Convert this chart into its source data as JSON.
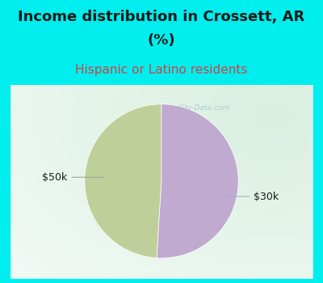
{
  "title_line1": "Income distribution in Crossett, AR",
  "title_line2": "(%)",
  "subtitle": "Hispanic or Latino residents",
  "title_color": "#1a1a1a",
  "subtitle_color": "#cc4444",
  "background_color": "#00EEEE",
  "chart_bg_left": "#c8e8d8",
  "chart_bg_right": "#e8f4f0",
  "slices": [
    49,
    51
  ],
  "labels": [
    "$50k",
    "$30k"
  ],
  "slice_colors": [
    "#bfcf99",
    "#c0aad0"
  ],
  "title_fontsize": 13,
  "subtitle_fontsize": 11,
  "label_fontsize": 9,
  "label_color": "#1a1a1a",
  "watermark": "City-Data.com",
  "startangle": 90
}
